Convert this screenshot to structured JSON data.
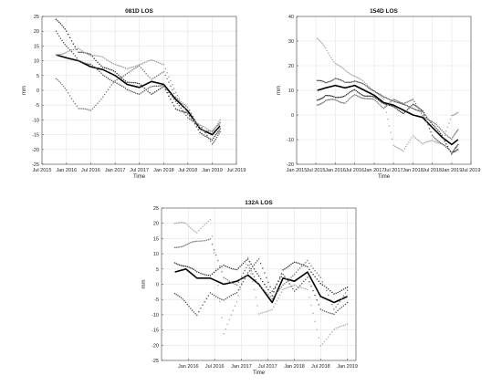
{
  "chart_data": [
    {
      "type": "line",
      "title": "081D LOS",
      "xlabel": "Time",
      "ylabel": "mm",
      "ylim": [
        -25,
        25
      ],
      "yticks": [
        -25,
        -20,
        -15,
        -10,
        -5,
        0,
        5,
        10,
        15,
        20,
        25
      ],
      "xlim": [
        "2015-07-01",
        "2019-07-01"
      ],
      "xticks": [
        "2015-07-01",
        "2016-01-01",
        "2016-07-01",
        "2017-01-01",
        "2017-07-01",
        "2018-01-01",
        "2018-07-01",
        "2019-01-01",
        "2019-07-01"
      ],
      "xticklabels": [
        "Jul 2015",
        "Jan 2016",
        "Jul 2016",
        "Jan 2017",
        "Jul 2017",
        "Jan 2018",
        "Jul 2018",
        "Jan 2019",
        "Jul 2019"
      ],
      "grid": true,
      "series": [
        {
          "style": "mean",
          "color": "#000000",
          "x": [
            "2015-10-15",
            "2016-01-01",
            "2016-04-01",
            "2016-07-01",
            "2016-10-01",
            "2017-01-01",
            "2017-04-01",
            "2017-07-01",
            "2017-10-01",
            "2018-01-01",
            "2018-04-01",
            "2018-07-01",
            "2018-10-01",
            "2019-01-01",
            "2019-03-01"
          ],
          "y": [
            12,
            11,
            10,
            8,
            7,
            5,
            2,
            1,
            3,
            2,
            -3,
            -7,
            -13,
            -15,
            -12
          ]
        },
        {
          "style": "points",
          "color": "#333333",
          "x": [
            "2015-10-15",
            "2016-01-01",
            "2016-04-01",
            "2016-07-01",
            "2016-10-01",
            "2017-01-01",
            "2017-04-01",
            "2017-07-01",
            "2017-10-01",
            "2018-01-01",
            "2018-04-01",
            "2018-07-01",
            "2018-10-01",
            "2019-01-01",
            "2019-03-01"
          ],
          "y": [
            24,
            20,
            13,
            12,
            8,
            6,
            3,
            2,
            -1,
            1,
            -6,
            -8,
            -14,
            -17,
            -13
          ]
        },
        {
          "style": "points",
          "color": "#555555",
          "x": [
            "2015-10-15",
            "2016-01-01",
            "2016-04-01",
            "2016-07-01",
            "2016-10-01",
            "2017-01-01",
            "2017-04-01",
            "2017-07-01",
            "2017-10-01",
            "2018-01-01",
            "2018-04-01",
            "2018-07-01",
            "2018-10-01",
            "2019-01-01",
            "2019-03-01"
          ],
          "y": [
            20,
            15,
            10,
            9,
            5,
            3,
            0,
            -1,
            1,
            2,
            -4,
            -9,
            -12,
            -18,
            -14
          ]
        },
        {
          "style": "points",
          "color": "#777777",
          "x": [
            "2015-10-15",
            "2016-01-01",
            "2016-04-01",
            "2016-07-01",
            "2016-10-01",
            "2017-01-01",
            "2017-04-01",
            "2017-07-01",
            "2017-10-01",
            "2018-01-01",
            "2018-04-01",
            "2018-07-01",
            "2018-10-01",
            "2019-01-01",
            "2019-03-01"
          ],
          "y": [
            4,
            0,
            -6,
            -7,
            -2,
            3,
            6,
            8,
            4,
            6,
            -2,
            -6,
            -13,
            -14,
            -11
          ]
        },
        {
          "style": "points",
          "color": "#999999",
          "x": [
            "2015-10-15",
            "2016-01-01",
            "2016-04-01",
            "2016-07-01",
            "2016-10-01",
            "2017-01-01",
            "2017-04-01",
            "2017-07-01",
            "2017-10-01",
            "2018-01-01",
            "2018-04-01",
            "2018-07-01",
            "2018-10-01",
            "2019-01-01",
            "2019-03-01"
          ],
          "y": [
            12,
            13,
            14,
            12,
            11,
            9,
            7,
            9,
            10,
            9,
            -1,
            -8,
            -12,
            -14,
            -10
          ]
        }
      ]
    },
    {
      "type": "line",
      "title": "154D LOS",
      "xlabel": "Time",
      "ylabel": "mm",
      "ylim": [
        -20,
        40
      ],
      "yticks": [
        -20,
        -10,
        0,
        10,
        20,
        30,
        40
      ],
      "xlim": [
        "2015-01-01",
        "2019-07-01"
      ],
      "xticks": [
        "2015-01-01",
        "2015-07-01",
        "2016-01-01",
        "2016-07-01",
        "2017-01-01",
        "2017-07-01",
        "2018-01-01",
        "2018-07-01",
        "2019-01-01",
        "2019-07-01"
      ],
      "xticklabels": [
        "Jan 2015",
        "Jul 2015",
        "Jan 2016",
        "Jul 2016",
        "Jan 2017",
        "Jul 2017",
        "Jan 2018",
        "Jul 2018",
        "Jan 2019",
        "Jul 2019"
      ],
      "grid": true,
      "series": [
        {
          "style": "mean",
          "color": "#000000",
          "x": [
            "2015-07-15",
            "2015-10-01",
            "2016-01-01",
            "2016-04-01",
            "2016-07-01",
            "2016-10-01",
            "2017-01-01",
            "2017-04-01",
            "2017-07-01",
            "2017-10-01",
            "2018-01-01",
            "2018-04-01",
            "2018-07-01",
            "2018-10-01",
            "2019-01-01",
            "2019-03-01"
          ],
          "y": [
            10,
            11,
            12,
            11,
            12,
            10,
            8,
            5,
            4,
            2,
            0,
            -1,
            -5,
            -9,
            -12,
            -10
          ]
        },
        {
          "style": "points",
          "color": "#aaaaaa",
          "x": [
            "2015-07-15",
            "2015-10-01",
            "2016-01-01",
            "2016-04-01",
            "2016-07-01",
            "2016-10-01",
            "2017-01-01",
            "2017-04-01",
            "2017-07-01",
            "2017-10-01",
            "2018-01-01",
            "2018-04-01",
            "2018-07-01",
            "2018-10-01",
            "2019-01-01",
            "2019-03-01"
          ],
          "y": [
            31,
            27,
            21,
            18,
            16,
            13,
            10,
            6,
            -12,
            -15,
            -8,
            -12,
            -10,
            -12,
            0,
            1
          ]
        },
        {
          "style": "points",
          "color": "#333333",
          "x": [
            "2015-07-15",
            "2015-10-01",
            "2016-01-01",
            "2016-04-01",
            "2016-07-01",
            "2016-10-01",
            "2017-01-01",
            "2017-04-01",
            "2017-07-01",
            "2017-10-01",
            "2018-01-01",
            "2018-04-01",
            "2018-07-01",
            "2018-10-01",
            "2019-01-01",
            "2019-03-01"
          ],
          "y": [
            6,
            8,
            7,
            8,
            10,
            8,
            7,
            5,
            3,
            1,
            4,
            2,
            -4,
            -8,
            -16,
            -12
          ]
        },
        {
          "style": "points",
          "color": "#555555",
          "x": [
            "2015-07-15",
            "2015-10-01",
            "2016-01-01",
            "2016-04-01",
            "2016-07-01",
            "2016-10-01",
            "2017-01-01",
            "2017-04-01",
            "2017-07-01",
            "2017-10-01",
            "2018-01-01",
            "2018-04-01",
            "2018-07-01",
            "2018-10-01",
            "2019-01-01",
            "2019-03-01"
          ],
          "y": [
            14,
            13,
            15,
            13,
            14,
            12,
            10,
            7,
            6,
            4,
            3,
            1,
            -8,
            -12,
            -15,
            -14
          ]
        },
        {
          "style": "points",
          "color": "#777777",
          "x": [
            "2015-07-15",
            "2015-10-01",
            "2016-01-01",
            "2016-04-01",
            "2016-07-01",
            "2016-10-01",
            "2017-01-01",
            "2017-04-01",
            "2017-07-01",
            "2017-10-01",
            "2018-01-01",
            "2018-04-01",
            "2018-07-01",
            "2018-10-01",
            "2019-01-01",
            "2019-03-01"
          ],
          "y": [
            4,
            6,
            6,
            5,
            8,
            7,
            6,
            3,
            6,
            5,
            6,
            0,
            -3,
            -6,
            -10,
            -6
          ]
        }
      ]
    },
    {
      "type": "line",
      "title": "132A LOS",
      "xlabel": "Time",
      "ylabel": "mm",
      "ylim": [
        -25,
        25
      ],
      "yticks": [
        -25,
        -20,
        -15,
        -10,
        -5,
        0,
        5,
        10,
        15,
        20,
        25
      ],
      "xlim": [
        "2015-07-01",
        "2019-03-01"
      ],
      "xticks": [
        "2016-01-01",
        "2016-07-01",
        "2017-01-01",
        "2017-07-01",
        "2018-01-01",
        "2018-07-01",
        "2019-01-01"
      ],
      "xticklabels": [
        "Jan 2016",
        "Jul 2016",
        "Jan 2017",
        "Jul 2017",
        "Jan 2018",
        "Jul 2018",
        "Jan 2019"
      ],
      "grid": true,
      "series": [
        {
          "style": "mean",
          "color": "#000000",
          "x": [
            "2015-10-01",
            "2015-12-15",
            "2016-03-01",
            "2016-06-01",
            "2016-09-01",
            "2016-12-01",
            "2017-02-15",
            "2017-05-01",
            "2017-08-01",
            "2017-10-15",
            "2018-01-01",
            "2018-04-01",
            "2018-07-01",
            "2018-10-01",
            "2019-01-01"
          ],
          "y": [
            4,
            5,
            2,
            2,
            0,
            1,
            3,
            0,
            -6,
            2,
            1,
            4,
            -4,
            -6,
            -4
          ]
        },
        {
          "style": "points",
          "color": "#aaaaaa",
          "x": [
            "2015-10-01",
            "2015-12-15",
            "2016-03-01",
            "2016-06-01",
            "2016-09-01",
            "2016-12-01",
            "2017-02-15",
            "2017-05-01",
            "2017-08-01",
            "2017-10-15",
            "2018-01-01",
            "2018-04-01",
            "2018-07-01",
            "2018-10-01",
            "2019-01-01"
          ],
          "y": [
            20,
            20,
            17,
            21,
            -16,
            -6,
            9,
            -10,
            -8,
            -2,
            0,
            -2,
            -20,
            -15,
            -13
          ]
        },
        {
          "style": "points",
          "color": "#333333",
          "x": [
            "2015-10-01",
            "2015-12-15",
            "2016-03-01",
            "2016-06-01",
            "2016-09-01",
            "2016-12-01",
            "2017-02-15",
            "2017-05-01",
            "2017-08-01",
            "2017-10-15",
            "2018-01-01",
            "2018-04-01",
            "2018-07-01",
            "2018-10-01",
            "2019-01-01"
          ],
          "y": [
            7,
            6,
            4,
            3,
            6,
            5,
            8,
            3,
            -4,
            5,
            7,
            6,
            0,
            -3,
            -1
          ]
        },
        {
          "style": "points",
          "color": "#555555",
          "x": [
            "2015-10-01",
            "2015-12-15",
            "2016-03-01",
            "2016-06-01",
            "2016-09-01",
            "2016-12-01",
            "2017-02-15",
            "2017-05-01",
            "2017-08-01",
            "2017-10-15",
            "2018-01-01",
            "2018-04-01",
            "2018-07-01",
            "2018-10-01",
            "2019-01-01"
          ],
          "y": [
            -3,
            -6,
            -10,
            -3,
            -5,
            -3,
            4,
            8,
            -2,
            3,
            -2,
            2,
            -8,
            -10,
            -6
          ]
        },
        {
          "style": "points",
          "color": "#777777",
          "x": [
            "2015-10-01",
            "2015-12-15",
            "2016-03-01",
            "2016-06-01",
            "2016-09-01",
            "2016-12-01",
            "2017-02-15",
            "2017-05-01",
            "2017-08-01",
            "2017-10-15",
            "2018-01-01",
            "2018-04-01",
            "2018-07-01",
            "2018-10-01",
            "2019-01-01"
          ],
          "y": [
            12,
            13,
            14,
            15,
            2,
            0,
            6,
            0,
            -5,
            0,
            3,
            8,
            2,
            -8,
            -2
          ]
        }
      ]
    }
  ]
}
